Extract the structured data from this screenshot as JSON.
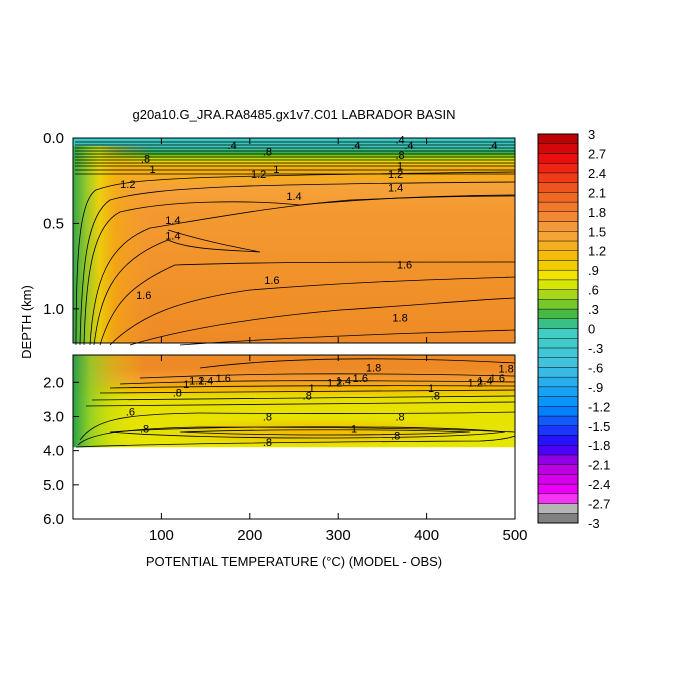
{
  "chart_data": {
    "type": "heatmap",
    "title": "g20a10.G_JRA.RA8485.gx1v7.C01 LABRADOR BASIN",
    "xlabel": "POTENTIAL TEMPERATURE (°C) (MODEL - OBS)",
    "ylabel": "DEPTH (km)",
    "x_ticks": [
      100,
      200,
      300,
      400,
      500
    ],
    "x_tick_labels": [
      "100",
      "200",
      "300",
      "400",
      "500"
    ],
    "xlim": [
      0,
      500
    ],
    "upper_panel": {
      "ylim": [
        0.0,
        1.2
      ],
      "y_ticks": [
        0.0,
        0.5,
        1.0
      ],
      "y_tick_labels": [
        "0.0",
        "0.5",
        "1.0"
      ]
    },
    "lower_panel": {
      "ylim": [
        1.2,
        6.0
      ],
      "y_ticks": [
        2.0,
        3.0,
        4.0,
        5.0,
        6.0
      ],
      "y_tick_labels": [
        "2.0",
        "3.0",
        "4.0",
        "5.0",
        "6.0"
      ],
      "data_bottom_depth": 3.9
    },
    "colorbar": {
      "min": -3,
      "max": 3,
      "step": 0.15,
      "tick_values": [
        3,
        2.7,
        2.4,
        2.1,
        1.8,
        1.5,
        1.2,
        0.9,
        0.6,
        0.3,
        0,
        -0.3,
        -0.6,
        -0.9,
        -1.2,
        -1.5,
        -1.8,
        -2.1,
        -2.4,
        -2.7,
        -3
      ],
      "tick_labels": [
        "3",
        "2.7",
        "2.4",
        "2.1",
        "1.8",
        "1.5",
        "1.2",
        ".9",
        ".6",
        ".3",
        "0",
        "-.3",
        "-.6",
        "-.9",
        "-1.2",
        "-1.5",
        "-1.8",
        "-2.1",
        "-2.4",
        "-2.7",
        "-3"
      ]
    },
    "contour_labels": [
      {
        "text": ".4",
        "x": 180,
        "depth": 0.04
      },
      {
        "text": ".4",
        "x": 320,
        "depth": 0.04
      },
      {
        "text": ".4",
        "x": 370,
        "depth": 0.01
      },
      {
        "text": ".4",
        "x": 380,
        "depth": 0.04
      },
      {
        "text": ".4",
        "x": 475,
        "depth": 0.04
      },
      {
        "text": ".8",
        "x": 82,
        "depth": 0.12
      },
      {
        "text": ".8",
        "x": 220,
        "depth": 0.08
      },
      {
        "text": ".8",
        "x": 370,
        "depth": 0.1
      },
      {
        "text": "1",
        "x": 90,
        "depth": 0.18
      },
      {
        "text": "1",
        "x": 230,
        "depth": 0.18
      },
      {
        "text": "1",
        "x": 370,
        "depth": 0.16
      },
      {
        "text": "1.2",
        "x": 62,
        "depth": 0.27
      },
      {
        "text": "1.2",
        "x": 210,
        "depth": 0.21
      },
      {
        "text": "1.2",
        "x": 365,
        "depth": 0.21
      },
      {
        "text": "1.4",
        "x": 250,
        "depth": 0.34
      },
      {
        "text": "1.4",
        "x": 365,
        "depth": 0.29
      },
      {
        "text": "1.4",
        "x": 113,
        "depth": 0.48
      },
      {
        "text": "1.4",
        "x": 113,
        "depth": 0.57
      },
      {
        "text": "1.6",
        "x": 375,
        "depth": 0.74
      },
      {
        "text": "1.6",
        "x": 225,
        "depth": 0.83
      },
      {
        "text": "1.6",
        "x": 80,
        "depth": 0.92
      },
      {
        "text": "1.8",
        "x": 370,
        "depth": 1.05
      },
      {
        "text": "1.8",
        "x": 340,
        "depth": 1.57
      },
      {
        "text": "1.8",
        "x": 490,
        "depth": 1.6
      },
      {
        "text": "1.6",
        "x": 170,
        "depth": 1.87
      },
      {
        "text": "1.6",
        "x": 325,
        "depth": 1.87
      },
      {
        "text": "1.6",
        "x": 480,
        "depth": 1.87
      },
      {
        "text": "1.2",
        "x": 140,
        "depth": 1.95
      },
      {
        "text": "1.4",
        "x": 150,
        "depth": 1.95
      },
      {
        "text": "1.2",
        "x": 296,
        "depth": 2.0
      },
      {
        "text": "1.4",
        "x": 306,
        "depth": 1.95
      },
      {
        "text": "1.2",
        "x": 455,
        "depth": 2.0
      },
      {
        "text": "1.4",
        "x": 466,
        "depth": 1.95
      },
      {
        "text": "1",
        "x": 128,
        "depth": 2.05
      },
      {
        "text": ".8",
        "x": 118,
        "depth": 2.3
      },
      {
        "text": "1",
        "x": 270,
        "depth": 2.17
      },
      {
        "text": ".8",
        "x": 265,
        "depth": 2.38
      },
      {
        "text": "1",
        "x": 405,
        "depth": 2.17
      },
      {
        "text": ".8",
        "x": 410,
        "depth": 2.38
      },
      {
        "text": ".6",
        "x": 65,
        "depth": 2.85
      },
      {
        "text": ".8",
        "x": 81,
        "depth": 3.35
      },
      {
        "text": ".8",
        "x": 220,
        "depth": 3.0
      },
      {
        "text": ".8",
        "x": 370,
        "depth": 3.0
      },
      {
        "text": "1",
        "x": 318,
        "depth": 3.35
      },
      {
        "text": ".8",
        "x": 365,
        "depth": 3.55
      },
      {
        "text": ".8",
        "x": 220,
        "depth": 3.75
      }
    ]
  }
}
